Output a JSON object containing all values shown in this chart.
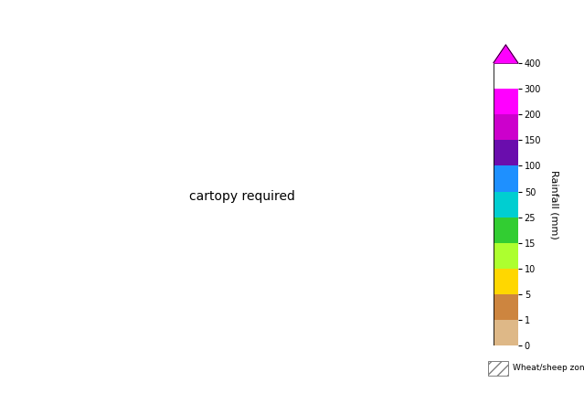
{
  "colorbar_label": "Rainfall (mm)",
  "levels": [
    0,
    1,
    5,
    10,
    15,
    25,
    50,
    100,
    150,
    200,
    300,
    400
  ],
  "colors": [
    "#ffffff",
    "#deb887",
    "#cd853f",
    "#ffd700",
    "#adff2f",
    "#32cd32",
    "#00ced1",
    "#1e90ff",
    "#6a0dad",
    "#cc00cc",
    "#ff00ff"
  ],
  "tick_labels": [
    "0",
    "1",
    "5",
    "10",
    "15",
    "25",
    "50",
    "100",
    "150",
    "200",
    "300",
    "400"
  ],
  "figsize": [
    6.39,
    4.3
  ],
  "dpi": 100,
  "background": "#ffffff",
  "wheat_sheep_hatch": "///",
  "colorbar_triangle_color": "#ff00ff"
}
